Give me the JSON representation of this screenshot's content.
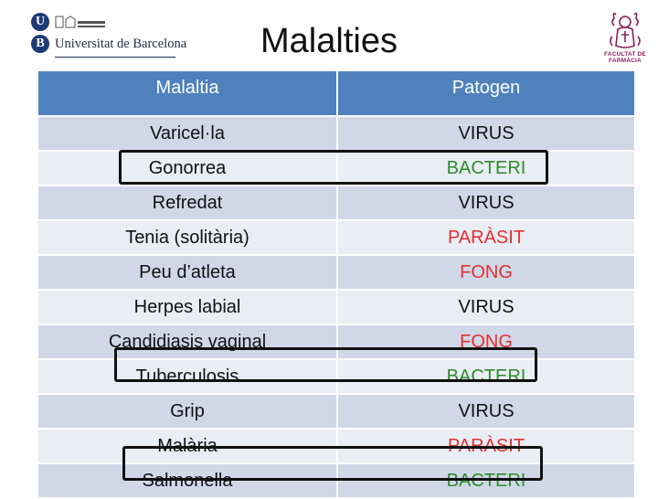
{
  "header": {
    "institution_name": "Universitat de Barcelona",
    "institution_initial_1": "U",
    "institution_initial_2": "B",
    "title": "Malalties",
    "faculty_logo_line1": "FACULTAT DE",
    "faculty_logo_line2": "FARMÀCIA"
  },
  "table": {
    "columns": [
      "Malaltia",
      "Patogen"
    ],
    "rows": [
      {
        "disease": "Varicel·la",
        "pathogen": "VIRUS",
        "color": "#111111"
      },
      {
        "disease": "Gonorrea",
        "pathogen": "BACTERI",
        "color": "#2e8b2e"
      },
      {
        "disease": "Refredat",
        "pathogen": "VIRUS",
        "color": "#111111"
      },
      {
        "disease": "Tenia (solitària)",
        "pathogen": "PARÀSIT",
        "color": "#e0302f"
      },
      {
        "disease": "Peu d’atleta",
        "pathogen": "FONG",
        "color": "#e0302f"
      },
      {
        "disease": "Herpes labial",
        "pathogen": "VIRUS",
        "color": "#111111"
      },
      {
        "disease": "Candidiasis vaginal",
        "pathogen": "FONG",
        "color": "#e0302f"
      },
      {
        "disease": "Tuberculosis",
        "pathogen": "BACTERI",
        "color": "#2e8b2e"
      },
      {
        "disease": "Grip",
        "pathogen": "VIRUS",
        "color": "#111111"
      },
      {
        "disease": "Malària",
        "pathogen": "PARÀSIT",
        "color": "#e0302f"
      },
      {
        "disease": "Salmonella",
        "pathogen": "BACTERI",
        "color": "#2e8b2e"
      }
    ]
  }
}
